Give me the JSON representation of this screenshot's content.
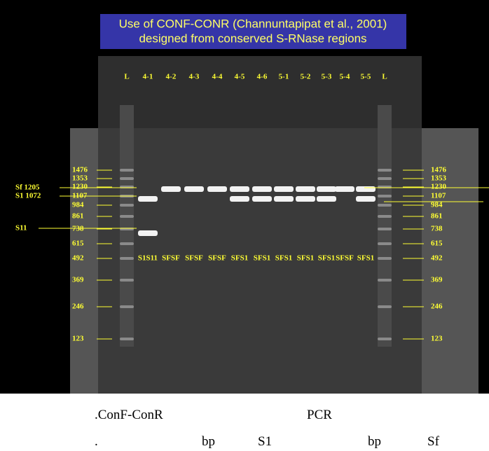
{
  "figure": {
    "title_lines": [
      "Use of CONF-CONR (Channuntapipat et al., 2001)",
      "designed from conserved S-RNase regions"
    ],
    "lanes": [
      "L",
      "4-1",
      "4-2",
      "4-3",
      "4-4",
      "4-5",
      "4-6",
      "5-1",
      "5-2",
      "5-3",
      "5-4",
      "5-5",
      "L"
    ],
    "ladder_left": [
      "1476",
      "1353",
      "1230",
      "1107",
      "984",
      "861",
      "738",
      "615",
      "492",
      "369",
      "246",
      "123"
    ],
    "ladder_right": [
      "1476",
      "1353",
      "1230",
      "1107",
      "984",
      "861",
      "738",
      "615",
      "492",
      "369",
      "246",
      "123"
    ],
    "band_labels": [
      "Sf  1205",
      "S1  1072",
      "S11"
    ],
    "genotypes": [
      "S1S11",
      "SFSF",
      "SFSF",
      "SFSF",
      "SFS1",
      "SFS1",
      "SFS1",
      "SFS1",
      "SFS1",
      "SFSF",
      "SFS1"
    ]
  },
  "caption": {
    "line1": [
      ".ConF-ConR",
      "PCR"
    ],
    "line2": [
      ".",
      "bp",
      "S1",
      "bp",
      "Sf"
    ]
  }
}
